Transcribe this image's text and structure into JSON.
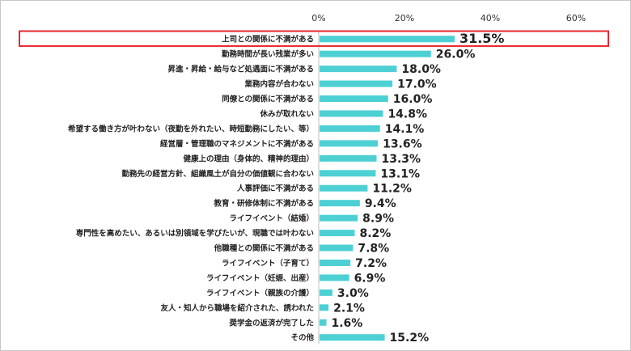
{
  "chart_data": {
    "type": "bar",
    "orientation": "horizontal",
    "title": "",
    "xlabel": "",
    "ylabel": "",
    "xlim": [
      0,
      60
    ],
    "xticks": [
      "0%",
      "20%",
      "40%",
      "60%"
    ],
    "grid": false,
    "bar_color": "#4dd0d4",
    "highlight_color": "#e8262c",
    "highlight_index": 0,
    "categories": [
      "上司との関係に不満がある",
      "勤務時間が長い残業が多い",
      "昇進・昇給・給与など処遇面に不満がある",
      "業務内容が合わない",
      "同僚との関係に不満がある",
      "休みが取れない",
      "希望する働き方が叶わない（夜勤を外れたい、時短勤務にしたい、等）",
      "経営層・管理職のマネジメントに不満がある",
      "健康上の理由（身体的、精神的理由）",
      "勤務先の経営方針、組織風土が自分の価値観に合わない",
      "人事評価に不満がある",
      "教育・研修体制に不満がある",
      "ライフイベント（結婚）",
      "専門性を高めたい、あるいは別領域を学びたいが、現職では叶わない",
      "他職種との関係に不満がある",
      "ライフイベント（子育て）",
      "ライフイベント（妊娠、出産）",
      "ライフイベント（親族の介護）",
      "友人・知人から職場を紹介された、誘われた",
      "奨学金の返済が完了した",
      "その他"
    ],
    "values": [
      31.5,
      26.0,
      18.0,
      17.0,
      16.0,
      14.8,
      14.1,
      13.6,
      13.3,
      13.1,
      11.2,
      9.4,
      8.9,
      8.2,
      7.8,
      7.2,
      6.9,
      3.0,
      2.1,
      1.6,
      15.2
    ],
    "value_labels": [
      "31.5%",
      "26.0%",
      "18.0%",
      "17.0%",
      "16.0%",
      "14.8%",
      "14.1%",
      "13.6%",
      "13.3%",
      "13.1%",
      "11.2%",
      "9.4%",
      "8.9%",
      "8.2%",
      "7.8%",
      "7.2%",
      "6.9%",
      "3.0%",
      "2.1%",
      "1.6%",
      "15.2%"
    ]
  }
}
